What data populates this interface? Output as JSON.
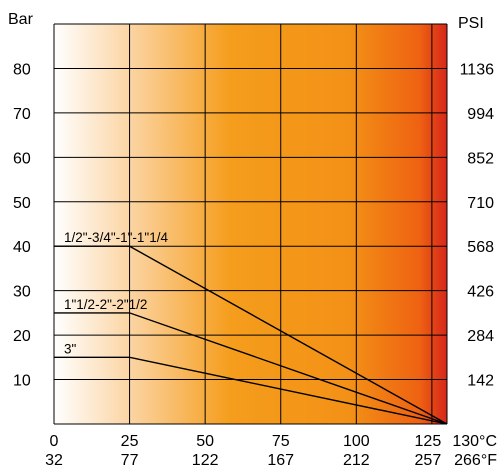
{
  "chart_data": {
    "type": "line",
    "title": "",
    "xlabel": "",
    "ylabel": "",
    "left_axis_unit": "Bar",
    "right_axis_unit": "PSI",
    "xlim": [
      0,
      130
    ],
    "ylim": [
      0,
      90
    ],
    "x_ticks_celsius": [
      "0",
      "25",
      "50",
      "75",
      "100",
      "125",
      "130°C"
    ],
    "x_ticks_fahrenheit": [
      "32",
      "77",
      "122",
      "167",
      "212",
      "257",
      "266°F"
    ],
    "x_tick_values": [
      0,
      25,
      50,
      75,
      100,
      125,
      130
    ],
    "y_ticks_bar": [
      "10",
      "20",
      "30",
      "40",
      "50",
      "60",
      "70",
      "80"
    ],
    "y_ticks_psi": [
      "142",
      "284",
      "426",
      "568",
      "710",
      "852",
      "994",
      "1136"
    ],
    "y_tick_values": [
      10,
      20,
      30,
      40,
      50,
      60,
      70,
      80
    ],
    "grid": true,
    "background_gradient": [
      "#ffffff",
      "#fbd3a0",
      "#f59d1c",
      "#f39116",
      "#ee6212",
      "#d7261a"
    ],
    "series": [
      {
        "name": "1/2\"-3/4\"-1\"-1\"1/4",
        "x": [
          0,
          25,
          130
        ],
        "y": [
          40,
          40,
          0
        ]
      },
      {
        "name": "1\"1/2-2\"-2\"1/2",
        "x": [
          0,
          25,
          130
        ],
        "y": [
          25,
          25,
          0
        ]
      },
      {
        "name": "3\"",
        "x": [
          0,
          25,
          130
        ],
        "y": [
          15,
          15,
          0
        ]
      }
    ]
  }
}
